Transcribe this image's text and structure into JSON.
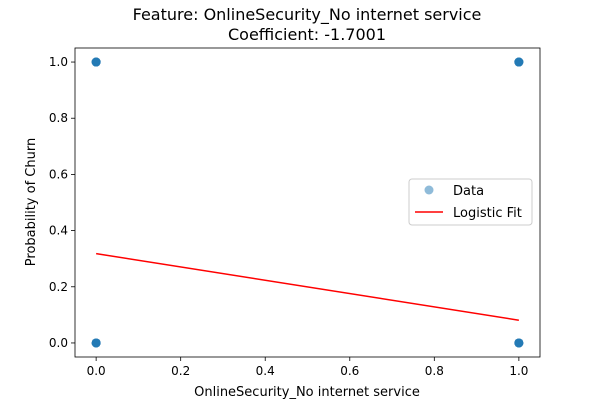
{
  "chart_data": {
    "type": "scatter",
    "title": "Feature: OnlineSecurity_No internet service",
    "subtitle": "Coefficient: -1.7001",
    "xlabel": "OnlineSecurity_No internet service",
    "ylabel": "Probability of Churn",
    "xlim": [
      -0.05,
      1.05
    ],
    "ylim": [
      -0.05,
      1.05
    ],
    "x_ticks": [
      0.0,
      0.2,
      0.4,
      0.6,
      0.8,
      1.0
    ],
    "x_tick_labels": [
      "0.0",
      "0.2",
      "0.4",
      "0.6",
      "0.8",
      "1.0"
    ],
    "y_ticks": [
      0.0,
      0.2,
      0.4,
      0.6,
      0.8,
      1.0
    ],
    "y_tick_labels": [
      "0.0",
      "0.2",
      "0.4",
      "0.6",
      "0.8",
      "1.0"
    ],
    "grid": false,
    "legend_position": "center-right",
    "series": [
      {
        "name": "Data",
        "kind": "scatter",
        "color": "#1f77b4",
        "points": [
          {
            "x": 0,
            "y": 1
          },
          {
            "x": 0,
            "y": 0
          },
          {
            "x": 1,
            "y": 1
          },
          {
            "x": 1,
            "y": 0
          }
        ]
      },
      {
        "name": "Logistic Fit",
        "kind": "line",
        "color": "#ff0000",
        "points": [
          {
            "x": 0,
            "y": 0.318
          },
          {
            "x": 1,
            "y": 0.081
          }
        ]
      }
    ]
  }
}
